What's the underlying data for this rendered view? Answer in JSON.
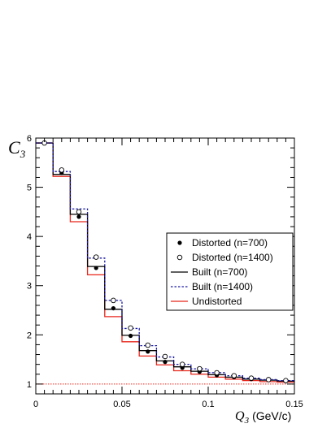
{
  "chart_data": {
    "type": "line",
    "xlim": [
      0,
      0.15
    ],
    "ylim": [
      0.8,
      6.0
    ],
    "x_ticks": [
      "0",
      "0.05",
      "0.1",
      "0.15"
    ],
    "y_ticks": [
      "1",
      "2",
      "3",
      "4",
      "5",
      "6"
    ],
    "ylabel_main": "C",
    "ylabel_sub": "3",
    "xlabel_main": "Q",
    "xlabel_sub": "3",
    "xlabel_unit": "(GeV/c)",
    "reference_line": 1.0,
    "legend_position": "right",
    "bin_edges": [
      0,
      0.01,
      0.02,
      0.03,
      0.04,
      0.05,
      0.06,
      0.07,
      0.08,
      0.09,
      0.1,
      0.11,
      0.12,
      0.13,
      0.14,
      0.15
    ],
    "bin_centers": [
      0.005,
      0.015,
      0.025,
      0.035,
      0.045,
      0.055,
      0.065,
      0.075,
      0.085,
      0.095,
      0.105,
      0.115,
      0.125,
      0.135,
      0.145
    ],
    "series": [
      {
        "name": "Distorted (n=700)",
        "kind": "points",
        "marker": "filled-circle",
        "color": "#000000",
        "values": [
          5.9,
          5.29,
          4.4,
          3.36,
          2.54,
          1.98,
          1.66,
          1.45,
          1.33,
          1.25,
          1.18,
          1.14,
          1.1,
          1.08,
          1.06
        ]
      },
      {
        "name": "Distorted (n=1400)",
        "kind": "points",
        "marker": "open-circle",
        "color": "#000000",
        "values": [
          5.9,
          5.35,
          4.5,
          3.58,
          2.7,
          2.14,
          1.79,
          1.56,
          1.4,
          1.31,
          1.23,
          1.17,
          1.12,
          1.09,
          1.07
        ]
      },
      {
        "name": "Built (n=700)",
        "kind": "step",
        "line": "solid",
        "color": "#000000",
        "values": [
          5.9,
          5.26,
          4.45,
          3.39,
          2.52,
          1.99,
          1.68,
          1.47,
          1.35,
          1.26,
          1.19,
          1.14,
          1.1,
          1.08,
          1.06
        ]
      },
      {
        "name": "Built (n=1400)",
        "kind": "step",
        "line": "dotted",
        "color": "#1a1aa6",
        "values": [
          5.9,
          5.32,
          4.56,
          3.56,
          2.7,
          2.13,
          1.78,
          1.55,
          1.4,
          1.31,
          1.23,
          1.17,
          1.12,
          1.09,
          1.07
        ]
      },
      {
        "name": "Undistorted",
        "kind": "step",
        "line": "solid",
        "color": "#e8261b",
        "values": [
          5.9,
          5.22,
          4.3,
          3.22,
          2.37,
          1.86,
          1.57,
          1.39,
          1.27,
          1.2,
          1.14,
          1.1,
          1.07,
          1.05,
          1.04
        ]
      }
    ]
  }
}
